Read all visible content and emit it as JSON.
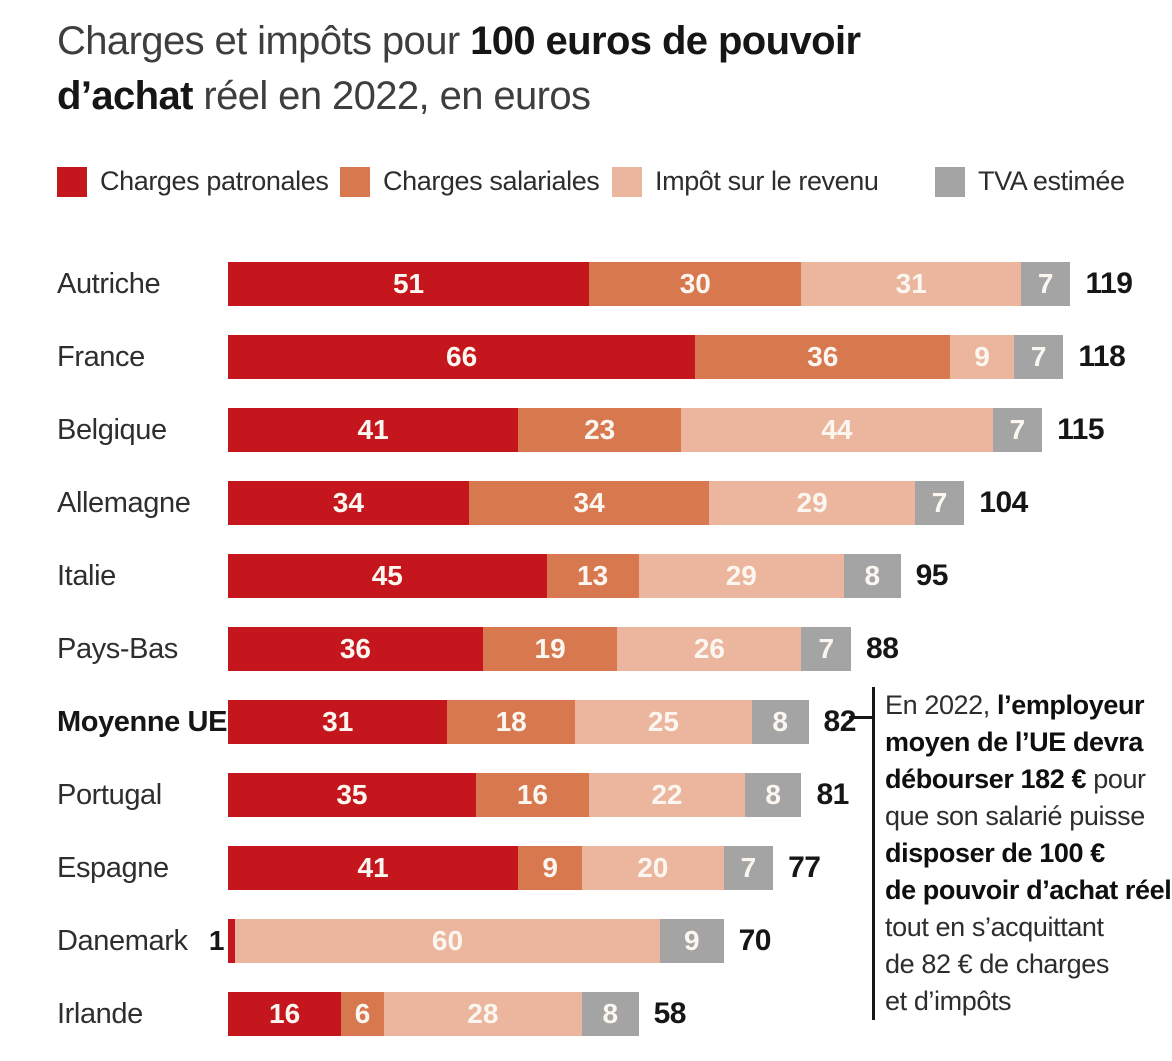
{
  "title": {
    "line1_regular": "Charges et impôts pour ",
    "line1_bold": "100 euros de pouvoir",
    "line2_bold": "d’achat",
    "line2_regular": " réel en 2022, en euros"
  },
  "colors": {
    "charges_patronales": "#c5161d",
    "charges_salariales": "#d7784f",
    "impot_revenu": "#ebb69d",
    "tva_estimee": "#a4a4a4",
    "text_dark": "#161614",
    "bar_value_text": "#fbf6f0"
  },
  "legend": {
    "items": [
      {
        "label": "Charges patronales",
        "color_key": "charges_patronales"
      },
      {
        "label": "Charges salariales",
        "color_key": "charges_salariales"
      },
      {
        "label": "Impôt sur le revenu",
        "color_key": "impot_revenu"
      },
      {
        "label": "TVA estimée",
        "color_key": "tva_estimee"
      }
    ]
  },
  "chart_data": {
    "type": "bar",
    "orientation": "horizontal",
    "stacked": true,
    "title": "Charges et impôts pour 100 euros de pouvoir d’achat réel en 2022, en euros",
    "unit": "euros",
    "xlim": [
      0,
      119
    ],
    "grid": false,
    "legend_position": "top",
    "value_labels": "inside, white bold; shown outside in black when segment too small",
    "categories": [
      "Autriche",
      "France",
      "Belgique",
      "Allemagne",
      "Italie",
      "Pays-Bas",
      "Moyenne UE",
      "Portugal",
      "Espagne",
      "Danemark",
      "Irlande"
    ],
    "emphasized_category": "Moyenne UE",
    "series": [
      {
        "name": "Charges patronales",
        "color_key": "charges_patronales",
        "values": [
          51,
          66,
          41,
          34,
          45,
          36,
          31,
          35,
          41,
          1,
          16
        ]
      },
      {
        "name": "Charges salariales",
        "color_key": "charges_salariales",
        "values": [
          30,
          36,
          23,
          34,
          13,
          19,
          18,
          16,
          9,
          0,
          6
        ]
      },
      {
        "name": "Impôt sur le revenu",
        "color_key": "impot_revenu",
        "values": [
          31,
          9,
          44,
          29,
          29,
          26,
          25,
          22,
          20,
          60,
          28
        ]
      },
      {
        "name": "TVA estimée",
        "color_key": "tva_estimee",
        "values": [
          7,
          7,
          7,
          7,
          8,
          7,
          8,
          8,
          7,
          9,
          8
        ]
      }
    ],
    "totals": [
      119,
      118,
      115,
      104,
      95,
      88,
      82,
      81,
      77,
      70,
      58
    ]
  },
  "annotation": {
    "connected_to": "Moyenne UE",
    "connected_value": 82,
    "lines": [
      {
        "parts": [
          {
            "text": "En 2022, ",
            "bold": false
          },
          {
            "text": "l’employeur",
            "bold": true
          }
        ]
      },
      {
        "parts": [
          {
            "text": "moyen de l’UE devra",
            "bold": true
          }
        ]
      },
      {
        "parts": [
          {
            "text": "débourser 182 €",
            "bold": true
          },
          {
            "text": " pour",
            "bold": false
          }
        ]
      },
      {
        "parts": [
          {
            "text": "que son salarié puisse",
            "bold": false
          }
        ]
      },
      {
        "parts": [
          {
            "text": "disposer de 100 €",
            "bold": true
          }
        ]
      },
      {
        "parts": [
          {
            "text": "de pouvoir d’achat réel,",
            "bold": true
          }
        ]
      },
      {
        "parts": [
          {
            "text": "tout en s’acquittant",
            "bold": false
          }
        ]
      },
      {
        "parts": [
          {
            "text": "de 82 € de charges",
            "bold": false
          }
        ]
      },
      {
        "parts": [
          {
            "text": "et d’impôts",
            "bold": false
          }
        ]
      }
    ]
  }
}
